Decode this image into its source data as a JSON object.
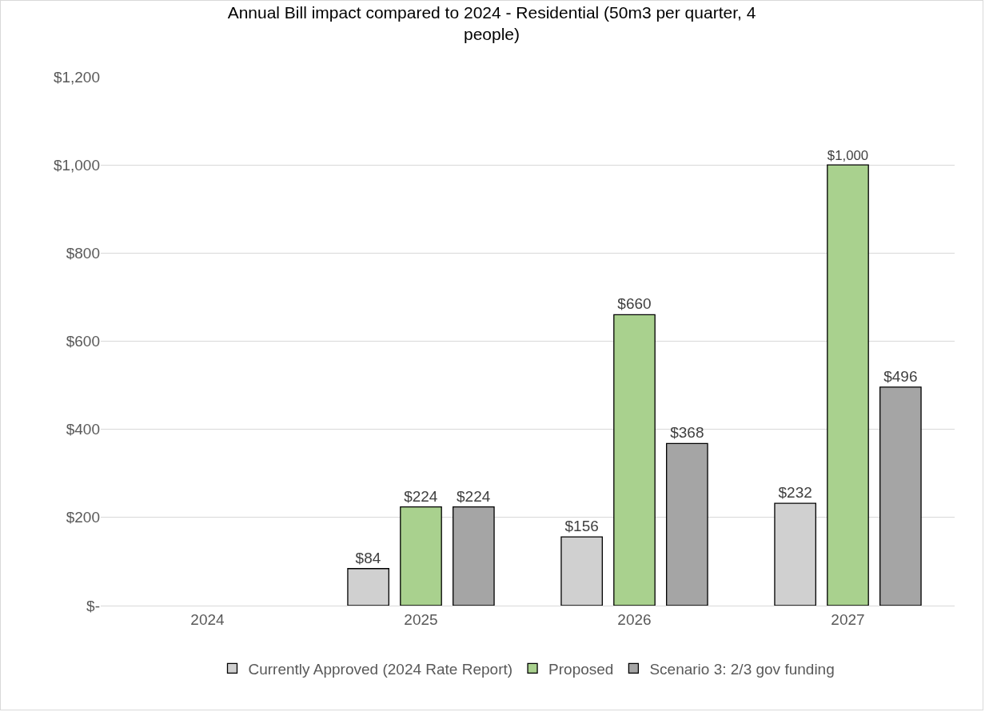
{
  "chart_data": {
    "type": "bar",
    "title": "Annual Bill impact compared to 2024 - Residential (50m3 per quarter, 4 people)",
    "categories": [
      "2024",
      "2025",
      "2026",
      "2027"
    ],
    "series": [
      {
        "name": "Currently Approved (2024 Rate Report)",
        "color": "#d0d0d0",
        "values": [
          null,
          84,
          156,
          232
        ],
        "value_labels": [
          null,
          "$84",
          "$156",
          "$232"
        ]
      },
      {
        "name": "Proposed",
        "color": "#a9d18e",
        "values": [
          null,
          224,
          660,
          1000
        ],
        "value_labels": [
          null,
          "$224",
          "$660",
          "$1,000"
        ]
      },
      {
        "name": "Scenario 3: 2/3 gov funding",
        "color": "#a5a5a5",
        "values": [
          null,
          224,
          368,
          496
        ],
        "value_labels": [
          null,
          "$224",
          "$368",
          "$496"
        ]
      }
    ],
    "ylim": [
      0,
      1200
    ],
    "yticks": [
      {
        "value": 0,
        "label": "$-"
      },
      {
        "value": 200,
        "label": "$200"
      },
      {
        "value": 400,
        "label": "$400"
      },
      {
        "value": 600,
        "label": "$600"
      },
      {
        "value": 800,
        "label": "$800"
      },
      {
        "value": 1000,
        "label": "$1,000"
      },
      {
        "value": 1200,
        "label": "$1,200"
      }
    ],
    "grid": "y",
    "legend": "bottom"
  }
}
